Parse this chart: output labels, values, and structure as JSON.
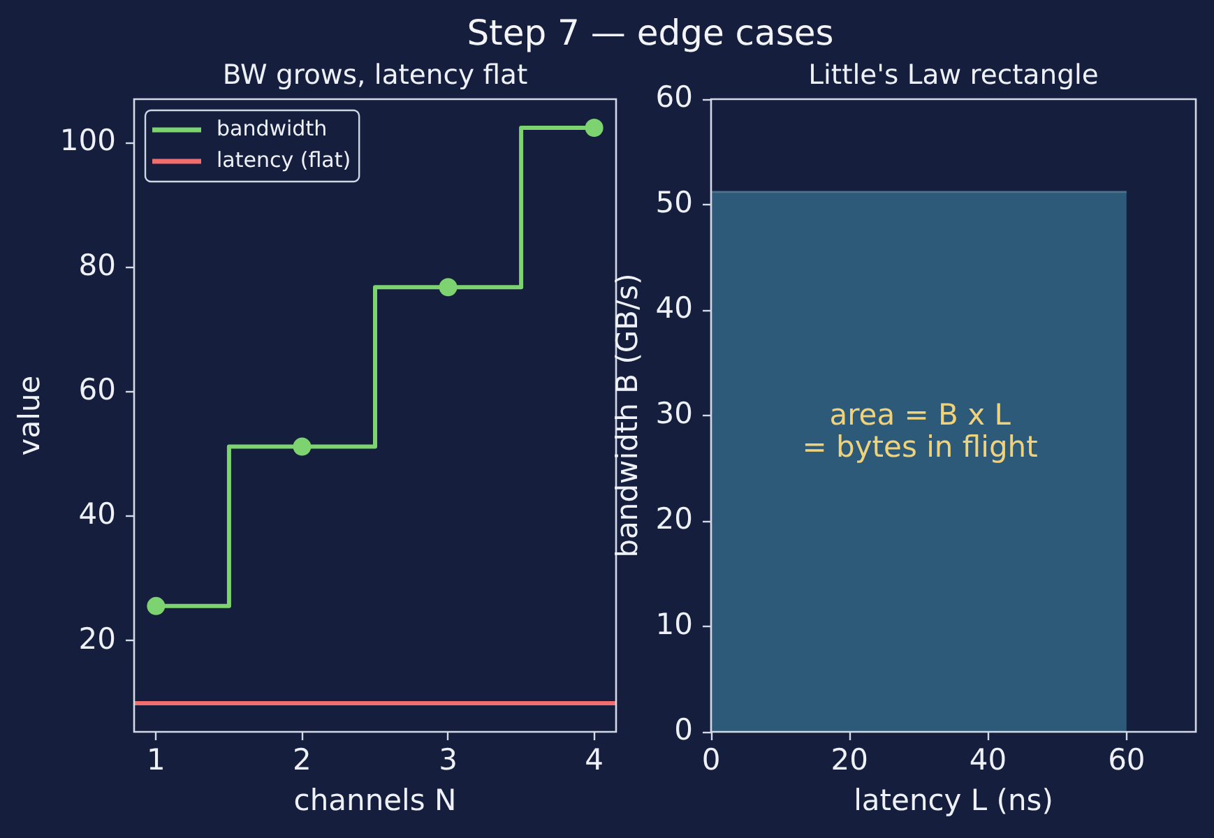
{
  "chart_data": [
    {
      "type": "step",
      "title": "Step 7 — edge cases",
      "subtitle": "BW grows, latency flat",
      "xlabel": "channels N",
      "ylabel": "value",
      "x": [
        1,
        2,
        3,
        4
      ],
      "series": [
        {
          "name": "bandwidth",
          "color": "#7dd36f",
          "values": [
            25.6,
            51.2,
            76.8,
            102.4
          ]
        },
        {
          "name": "latency (flat)",
          "type": "line",
          "color": "#f26d6d",
          "x": [
            0.85,
            4.15
          ],
          "values": [
            10,
            10
          ],
          "marker": "none"
        }
      ],
      "xlim": [
        0.85,
        4.15
      ],
      "xticks": [
        1,
        2,
        3,
        4
      ],
      "ylim": [
        5.4,
        107
      ],
      "yticks": [
        20,
        40,
        60,
        80,
        100
      ],
      "marker": "circle",
      "legend": "top left"
    },
    {
      "type": "area",
      "subtitle": "Little's Law rectangle",
      "xlabel": "latency L (ns)",
      "ylabel": "bandwidth B (GB/s)",
      "x": [
        0,
        60
      ],
      "series": [
        {
          "color": "#2d5a78",
          "values": [
            51.2,
            51.2
          ]
        }
      ],
      "xlim": [
        0,
        70
      ],
      "xticks": [
        0,
        20,
        40,
        60
      ],
      "ylim": [
        0,
        60
      ],
      "yticks": [
        0,
        10,
        20,
        30,
        40,
        50,
        60
      ],
      "annotations": [
        "area = B x L\n= bytes in flight"
      ]
    }
  ]
}
